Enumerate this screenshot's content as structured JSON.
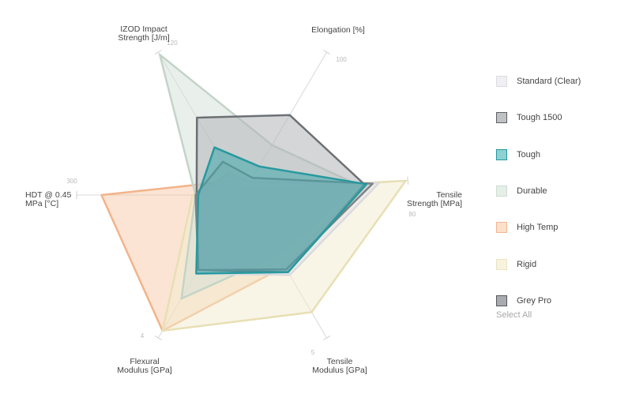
{
  "chart_data": {
    "type": "radar",
    "axes": [
      {
        "label": [
          "Elongation [%]"
        ],
        "max": 100,
        "tick_label": "100"
      },
      {
        "label": [
          "Tensile",
          "Strength [MPa]"
        ],
        "max": 80,
        "tick_label": "80"
      },
      {
        "label": [
          "Tensile",
          "Modulus [GPa]"
        ],
        "max": 5,
        "tick_label": "5"
      },
      {
        "label": [
          "Flexural",
          "Modulus [GPa]"
        ],
        "max": 4,
        "tick_label": "4"
      },
      {
        "label": [
          "HDT @ 0.45",
          "MPa [°C]"
        ],
        "max": 300,
        "tick_label": "300"
      },
      {
        "label": [
          "IZOD Impact",
          "Strength [J/m]"
        ],
        "max": 120,
        "tick_label": "120"
      }
    ],
    "series": [
      {
        "name": "High Temp",
        "fill": "#f6c39e",
        "stroke": "#f2b48a",
        "fill_opacity": 0.45,
        "values": [
          3,
          59,
          2.5,
          3.8,
          255,
          12
        ]
      },
      {
        "name": "Rigid",
        "fill": "#f2eccf",
        "stroke": "#e8dfb4",
        "fill_opacity": 0.5,
        "values": [
          4,
          79,
          4.1,
          3.8,
          90,
          17
        ]
      },
      {
        "name": "Durable",
        "fill": "#d3e0d7",
        "stroke": "#c3d4c8",
        "fill_opacity": 0.5,
        "values": [
          35,
          56,
          2.1,
          2.9,
          85,
          118
        ]
      },
      {
        "name": "Standard (Clear)",
        "fill": "#e6e6ea",
        "stroke": "#dadade",
        "fill_opacity": 0.6,
        "values": [
          9,
          66,
          2.8,
          2.2,
          80,
          19
        ]
      },
      {
        "name": "Tough 1500",
        "fill": "#b2b4b8",
        "stroke": "#6c7074",
        "fill_opacity": 0.55,
        "values": [
          56,
          59,
          2.7,
          2.1,
          83,
          65
        ]
      },
      {
        "name": "Grey Pro",
        "fill": "#a8abae",
        "stroke": "#7e8286",
        "fill_opacity": 0.4,
        "values": [
          12,
          63,
          2.6,
          2.1,
          85,
          28
        ]
      },
      {
        "name": "Tough",
        "fill": "#3ea5ac",
        "stroke": "#27999f",
        "fill_opacity": 0.55,
        "values": [
          20,
          60,
          2.7,
          2.2,
          80,
          40
        ]
      }
    ]
  },
  "legend": {
    "items": [
      {
        "label": "Standard (Clear)",
        "fill": "#f0f0f4",
        "stroke": "#dcdce0"
      },
      {
        "label": "Tough 1500",
        "fill": "#c0c1c4",
        "stroke": "#5c6064"
      },
      {
        "label": "Tough",
        "fill": "#8fd0d3",
        "stroke": "#1f9aa0"
      },
      {
        "label": "Durable",
        "fill": "#e6eee8",
        "stroke": "#ccdcd0"
      },
      {
        "label": "High Temp",
        "fill": "#fbe0cc",
        "stroke": "#f3b791"
      },
      {
        "label": "Rigid",
        "fill": "#f8f3df",
        "stroke": "#ebe3c0"
      },
      {
        "label": "Grey Pro",
        "fill": "#a9abae",
        "stroke": "#55585c"
      }
    ],
    "select_all": "Select All"
  }
}
